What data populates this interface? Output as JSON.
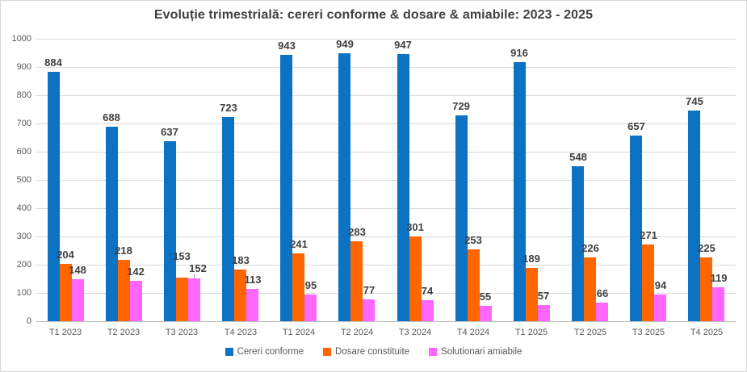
{
  "chart_data": {
    "type": "bar",
    "title": "Evoluție trimestrială: cereri conforme & dosare & amiabile: 2023 - 2025",
    "categories": [
      "T1 2023",
      "T2 2023",
      "T3 2023",
      "T4 2023",
      "T1 2024",
      "T2 2024",
      "T3 2024",
      "T4 2024",
      "T1 2025",
      "T2 2025",
      "T3 2025",
      "T4 2025"
    ],
    "series": [
      {
        "name": "Cereri conforme",
        "color": "#0C72C4",
        "values": [
          884,
          688,
          637,
          723,
          943,
          949,
          947,
          729,
          916,
          548,
          657,
          745
        ]
      },
      {
        "name": "Dosare constituite",
        "color": "#FF6600",
        "values": [
          204,
          218,
          153,
          183,
          241,
          283,
          301,
          253,
          189,
          226,
          271,
          225
        ]
      },
      {
        "name": "Solutionari amiabile",
        "color": "#FF66FF",
        "values": [
          148,
          142,
          152,
          113,
          95,
          77,
          74,
          55,
          57,
          66,
          94,
          119
        ]
      }
    ],
    "xlabel": "",
    "ylabel": "",
    "ylim": [
      0,
      1000
    ],
    "ytick_interval": 100,
    "grid": true,
    "legend_position": "bottom",
    "colors": {
      "title_text": "#404040",
      "axis_text": "#595959",
      "data_label_text": "#404040",
      "gridline": "#d9d9d9",
      "background": "#ffffff",
      "border": "#d6d6d6"
    }
  }
}
